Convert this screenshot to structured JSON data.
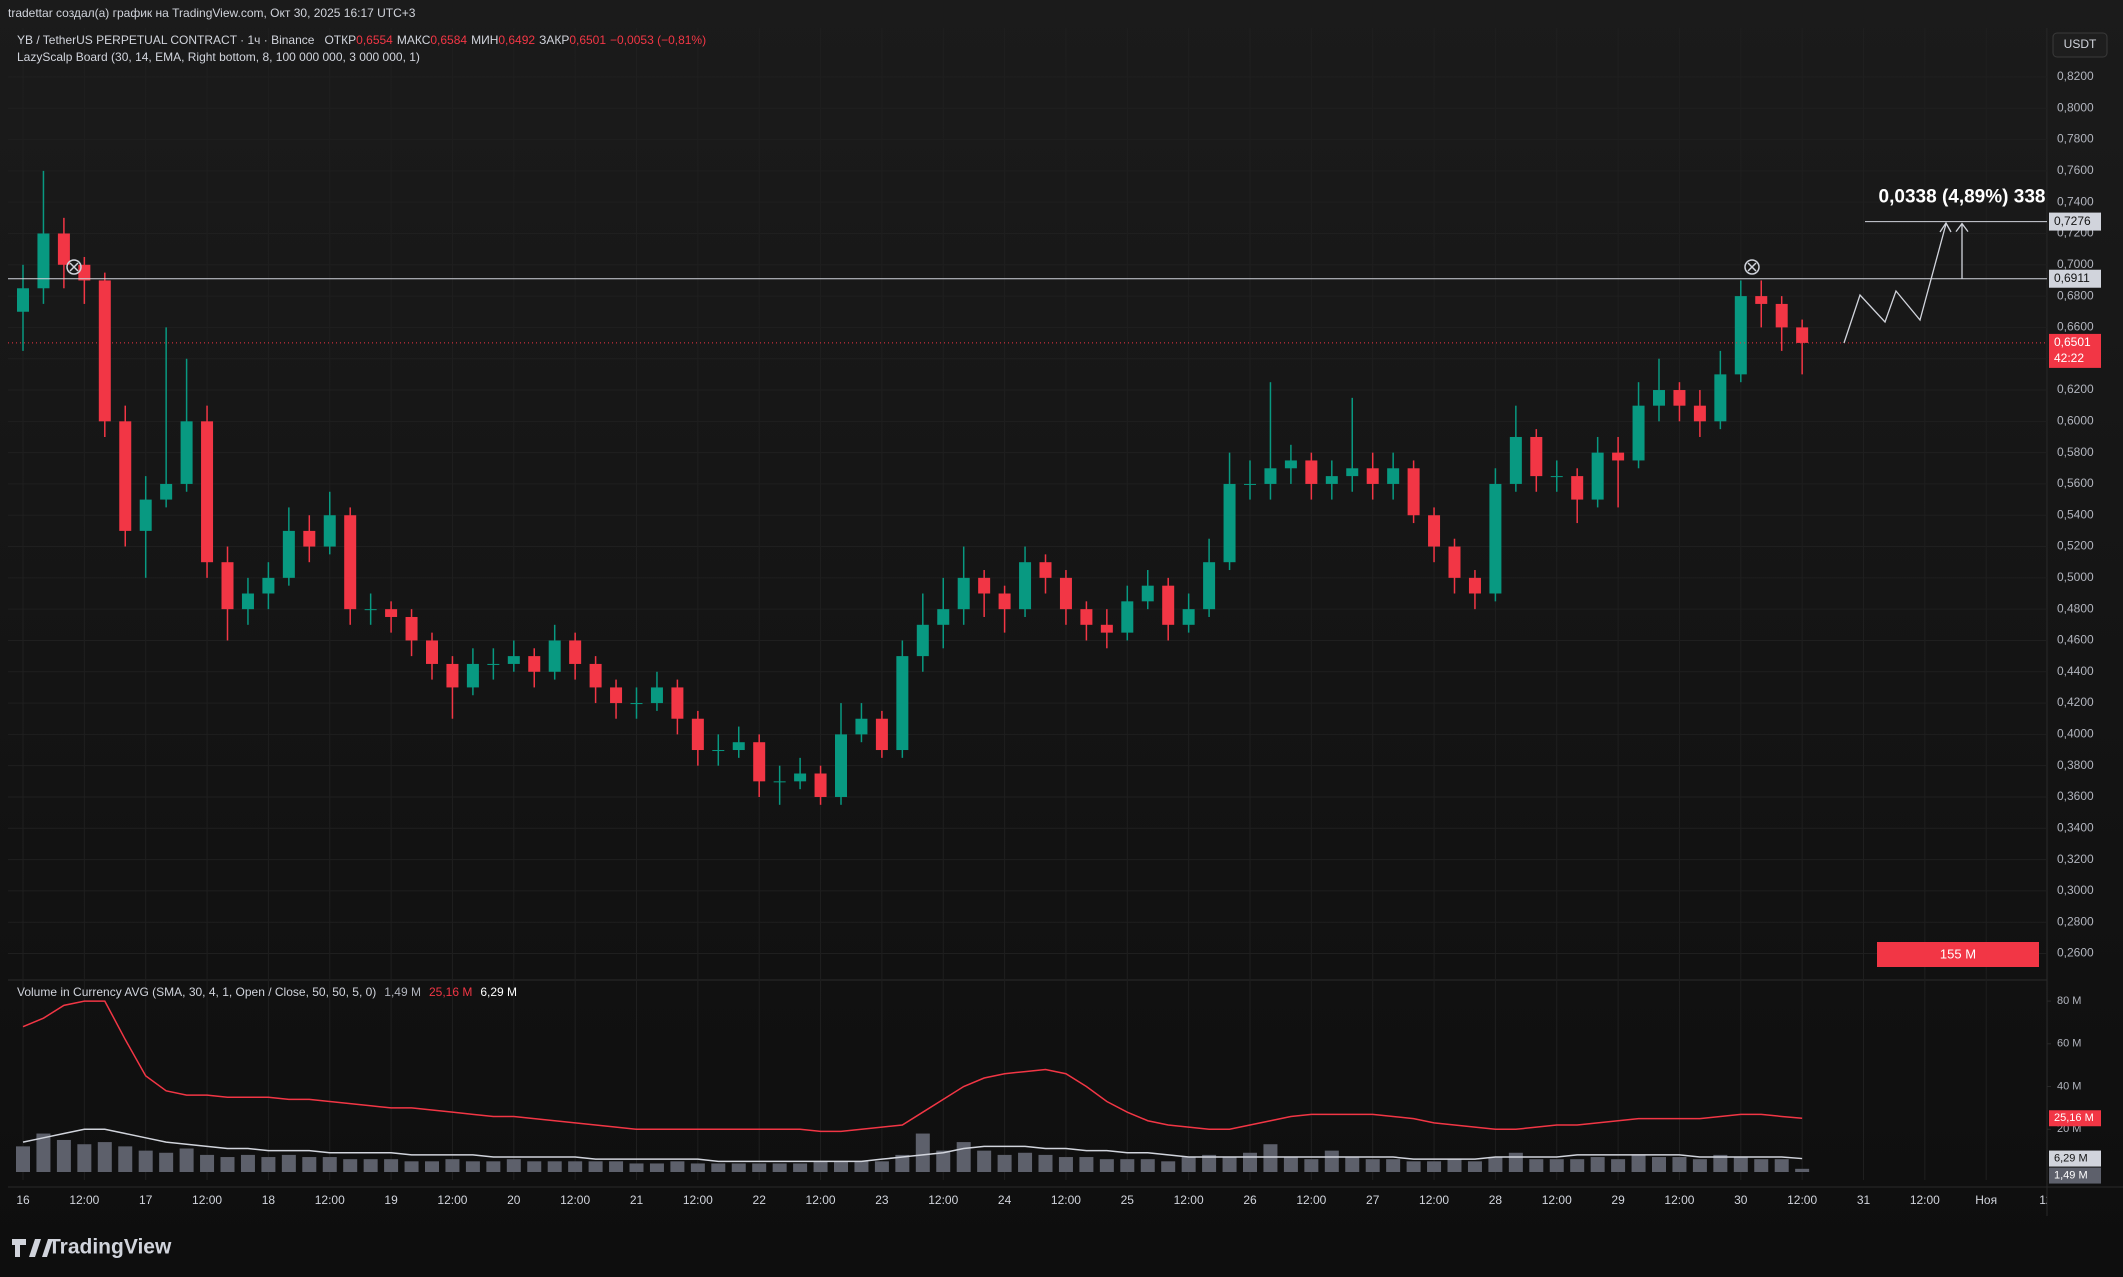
{
  "page": {
    "top_note": "tradettar создал(а) график на TradingView.com, Окт 30, 2025 16:17 UTC+3",
    "brand": "TradingView"
  },
  "chart_data": {
    "type": "candlestick",
    "title": "YB / TetherUS PERPETUAL CONTRACT · 1ч · Binance",
    "ohlc_legend": [
      {
        "label": "ОТКР",
        "value": "0,6554"
      },
      {
        "label": "МАКС",
        "value": "0,6584"
      },
      {
        "label": "МИН",
        "value": "0,6492"
      },
      {
        "label": "ЗАКР",
        "value": "0,6501"
      }
    ],
    "change": "−0,0053 (−0,81%)",
    "indicator": "LazyScalp Board (30, 14, EMA, Right bottom, 8, 100 000 000, 3 000 000, 1)",
    "currency": "USDT",
    "x_labels": [
      "16",
      "12:00",
      "17",
      "12:00",
      "18",
      "12:00",
      "19",
      "12:00",
      "20",
      "12:00",
      "21",
      "12:00",
      "22",
      "12:00",
      "23",
      "12:00",
      "24",
      "12:00",
      "25",
      "12:00",
      "26",
      "12:00",
      "27",
      "12:00",
      "28",
      "12:00",
      "29",
      "12:00",
      "30",
      "12:00",
      "31",
      "12:00",
      "Ноя",
      "12:"
    ],
    "open": [
      0.67,
      0.685,
      0.72,
      0.7,
      0.69,
      0.6,
      0.53,
      0.55,
      0.56,
      0.6,
      0.51,
      0.48,
      0.49,
      0.5,
      0.53,
      0.52,
      0.54,
      0.48,
      0.48,
      0.475,
      0.46,
      0.445,
      0.43,
      0.445,
      0.445,
      0.45,
      0.44,
      0.46,
      0.445,
      0.43,
      0.42,
      0.42,
      0.43,
      0.41,
      0.39,
      0.39,
      0.395,
      0.37,
      0.37,
      0.375,
      0.36,
      0.4,
      0.41,
      0.39,
      0.45,
      0.47,
      0.48,
      0.5,
      0.49,
      0.48,
      0.51,
      0.5,
      0.48,
      0.47,
      0.465,
      0.485,
      0.495,
      0.47,
      0.48,
      0.51,
      0.56,
      0.56,
      0.57,
      0.575,
      0.56,
      0.565,
      0.57,
      0.56,
      0.57,
      0.54,
      0.52,
      0.5,
      0.49,
      0.56,
      0.59,
      0.565,
      0.565,
      0.55,
      0.58,
      0.575,
      0.61,
      0.62,
      0.61,
      0.6,
      0.63,
      0.68,
      0.675,
      0.66
    ],
    "high": [
      0.7,
      0.76,
      0.73,
      0.705,
      0.695,
      0.61,
      0.565,
      0.66,
      0.64,
      0.61,
      0.52,
      0.5,
      0.51,
      0.545,
      0.54,
      0.555,
      0.545,
      0.49,
      0.485,
      0.48,
      0.465,
      0.45,
      0.455,
      0.455,
      0.46,
      0.455,
      0.47,
      0.465,
      0.45,
      0.435,
      0.43,
      0.44,
      0.435,
      0.415,
      0.4,
      0.405,
      0.4,
      0.38,
      0.385,
      0.38,
      0.42,
      0.42,
      0.415,
      0.46,
      0.49,
      0.5,
      0.52,
      0.505,
      0.495,
      0.52,
      0.515,
      0.505,
      0.485,
      0.48,
      0.495,
      0.505,
      0.5,
      0.49,
      0.525,
      0.58,
      0.575,
      0.625,
      0.585,
      0.58,
      0.575,
      0.615,
      0.58,
      0.58,
      0.575,
      0.545,
      0.525,
      0.505,
      0.57,
      0.61,
      0.595,
      0.575,
      0.57,
      0.59,
      0.59,
      0.625,
      0.64,
      0.625,
      0.62,
      0.645,
      0.69,
      0.69,
      0.68,
      0.665
    ],
    "low": [
      0.645,
      0.675,
      0.685,
      0.675,
      0.59,
      0.52,
      0.5,
      0.545,
      0.555,
      0.5,
      0.46,
      0.47,
      0.48,
      0.495,
      0.51,
      0.515,
      0.47,
      0.47,
      0.465,
      0.45,
      0.435,
      0.41,
      0.425,
      0.435,
      0.44,
      0.43,
      0.435,
      0.435,
      0.42,
      0.41,
      0.41,
      0.415,
      0.4,
      0.38,
      0.38,
      0.385,
      0.36,
      0.355,
      0.365,
      0.355,
      0.355,
      0.395,
      0.385,
      0.385,
      0.44,
      0.455,
      0.47,
      0.475,
      0.465,
      0.475,
      0.49,
      0.47,
      0.46,
      0.455,
      0.46,
      0.48,
      0.46,
      0.465,
      0.475,
      0.505,
      0.55,
      0.55,
      0.56,
      0.55,
      0.55,
      0.555,
      0.55,
      0.55,
      0.535,
      0.51,
      0.49,
      0.48,
      0.485,
      0.555,
      0.555,
      0.555,
      0.535,
      0.545,
      0.545,
      0.57,
      0.6,
      0.6,
      0.59,
      0.595,
      0.625,
      0.66,
      0.645,
      0.63
    ],
    "close": [
      0.685,
      0.72,
      0.7,
      0.69,
      0.6,
      0.53,
      0.55,
      0.56,
      0.6,
      0.51,
      0.48,
      0.49,
      0.5,
      0.53,
      0.52,
      0.54,
      0.48,
      0.48,
      0.475,
      0.46,
      0.445,
      0.43,
      0.445,
      0.445,
      0.45,
      0.44,
      0.46,
      0.445,
      0.43,
      0.42,
      0.42,
      0.43,
      0.41,
      0.39,
      0.39,
      0.395,
      0.37,
      0.37,
      0.375,
      0.36,
      0.4,
      0.41,
      0.39,
      0.45,
      0.47,
      0.48,
      0.5,
      0.49,
      0.48,
      0.51,
      0.5,
      0.48,
      0.47,
      0.465,
      0.485,
      0.495,
      0.47,
      0.48,
      0.51,
      0.56,
      0.56,
      0.57,
      0.575,
      0.56,
      0.565,
      0.57,
      0.56,
      0.57,
      0.54,
      0.52,
      0.5,
      0.49,
      0.56,
      0.59,
      0.565,
      0.565,
      0.55,
      0.58,
      0.575,
      0.61,
      0.62,
      0.61,
      0.6,
      0.63,
      0.68,
      0.675,
      0.66,
      0.6501
    ],
    "up_color": "#089981",
    "down_color": "#f23645",
    "ylim": [
      0.245,
      0.85
    ],
    "yticks": [
      {
        "value": 0.26,
        "label": "0,2600"
      },
      {
        "value": 0.28,
        "label": "0,2800"
      },
      {
        "value": 0.3,
        "label": "0,3000"
      },
      {
        "value": 0.32,
        "label": "0,3200"
      },
      {
        "value": 0.34,
        "label": "0,3400"
      },
      {
        "value": 0.36,
        "label": "0,3600"
      },
      {
        "value": 0.38,
        "label": "0,3800"
      },
      {
        "value": 0.4,
        "label": "0,4000"
      },
      {
        "value": 0.42,
        "label": "0,4200"
      },
      {
        "value": 0.44,
        "label": "0,4400"
      },
      {
        "value": 0.46,
        "label": "0,4600"
      },
      {
        "value": 0.48,
        "label": "0,4800"
      },
      {
        "value": 0.5,
        "label": "0,5000"
      },
      {
        "value": 0.52,
        "label": "0,5200"
      },
      {
        "value": 0.54,
        "label": "0,5400"
      },
      {
        "value": 0.56,
        "label": "0,5600"
      },
      {
        "value": 0.58,
        "label": "0,5800"
      },
      {
        "value": 0.6,
        "label": "0,6000"
      },
      {
        "value": 0.62,
        "label": "0,6200"
      },
      {
        "value": 0.64,
        "label": "0,6400"
      },
      {
        "value": 0.66,
        "label": "0,6600"
      },
      {
        "value": 0.68,
        "label": "0,6800"
      },
      {
        "value": 0.7,
        "label": "0,7000"
      },
      {
        "value": 0.72,
        "label": "0,7200"
      },
      {
        "value": 0.74,
        "label": "0,7400"
      },
      {
        "value": 0.76,
        "label": "0,7600"
      },
      {
        "value": 0.78,
        "label": "0,7800"
      },
      {
        "value": 0.8,
        "label": "0,8000"
      },
      {
        "value": 0.82,
        "label": "0,8200"
      }
    ],
    "level": {
      "value": 0.6911,
      "label": "0,6911"
    },
    "last_price": {
      "value": 0.6501,
      "label": "0,6501",
      "countdown": "42:22"
    },
    "target": {
      "value": 0.7276,
      "label": "0,7276",
      "text": "0,0338 (4,89%) 338"
    },
    "volume_box": "155 M",
    "volume": {
      "title": "Volume in Currency AVG (SMA, 30, 4, 1, Open / Close, 50, 50, 5, 0)",
      "y2lim": [
        0,
        88
      ],
      "y2ticks": [
        {
          "value": 20,
          "label": "20 M"
        },
        {
          "value": 40,
          "label": "40 M"
        },
        {
          "value": 60,
          "label": "60 M"
        },
        {
          "value": 80,
          "label": "80 M"
        }
      ],
      "color": "#5d606b",
      "value_label": "1,49 M",
      "values": [
        12,
        18,
        15,
        13,
        14,
        12,
        10,
        9,
        11,
        8,
        7,
        8,
        7,
        8,
        7,
        7,
        6,
        6,
        6,
        5,
        5,
        6,
        5,
        5,
        6,
        5,
        5,
        5,
        5,
        5,
        4,
        4,
        5,
        4,
        4,
        4,
        4,
        4,
        4,
        5,
        5,
        5,
        5,
        8,
        18,
        10,
        14,
        10,
        8,
        9,
        8,
        7,
        7,
        6,
        6,
        6,
        5,
        7,
        8,
        7,
        9,
        13,
        7,
        6,
        10,
        7,
        6,
        6,
        5,
        5,
        6,
        5,
        7,
        9,
        6,
        6,
        6,
        7,
        6,
        8,
        7,
        7,
        6,
        8,
        7,
        6,
        6,
        1.49
      ],
      "series": [
        {
          "color": "#f23645",
          "value_label": "25,16 M",
          "values": [
            68,
            72,
            78,
            80,
            80,
            62,
            45,
            38,
            36,
            36,
            35,
            35,
            35,
            34,
            34,
            33,
            32,
            31,
            30,
            30,
            29,
            28,
            27,
            26,
            26,
            25,
            24,
            23,
            22,
            21,
            20,
            20,
            20,
            20,
            20,
            20,
            20,
            20,
            20,
            19,
            19,
            20,
            21,
            22,
            28,
            34,
            40,
            44,
            46,
            47,
            48,
            46,
            40,
            33,
            28,
            24,
            22,
            21,
            20,
            20,
            22,
            24,
            26,
            27,
            27,
            27,
            27,
            26,
            25,
            23,
            22,
            21,
            20,
            20,
            21,
            22,
            22,
            23,
            24,
            25,
            25,
            25,
            25,
            26,
            27,
            27,
            26,
            25.16
          ]
        },
        {
          "color": "#d1d4dc",
          "value_label": "6,29 M",
          "values": [
            14,
            16,
            18,
            20,
            20,
            18,
            16,
            14,
            13,
            12,
            11,
            11,
            10,
            10,
            10,
            9,
            9,
            9,
            9,
            8,
            8,
            8,
            8,
            7,
            7,
            7,
            7,
            7,
            6,
            6,
            6,
            6,
            6,
            6,
            5,
            5,
            5,
            5,
            5,
            5,
            5,
            5,
            6,
            7,
            8,
            9,
            11,
            12,
            12,
            12,
            11,
            11,
            10,
            10,
            9,
            9,
            8,
            7,
            7,
            7,
            7,
            7,
            7,
            7,
            7,
            7,
            7,
            7,
            6,
            6,
            6,
            6,
            7,
            7,
            7,
            7,
            8,
            8,
            8,
            8,
            8,
            8,
            7,
            7,
            7,
            7,
            7,
            6.29
          ]
        }
      ]
    }
  }
}
